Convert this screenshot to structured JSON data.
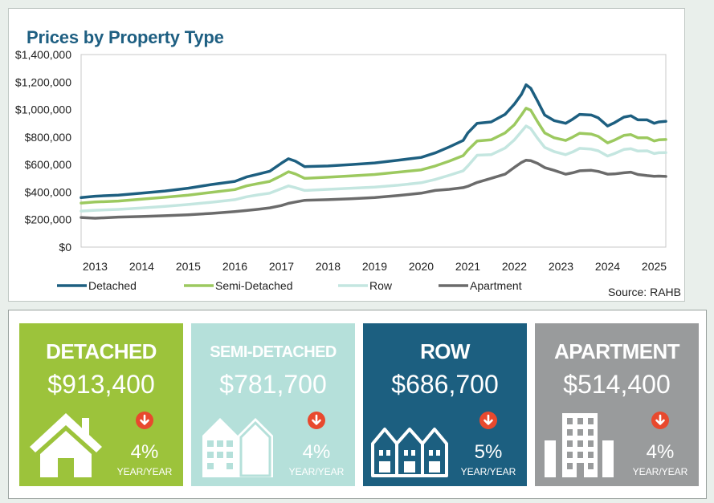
{
  "chart_data": {
    "type": "line",
    "title": "Prices by Property Type",
    "source": "Source: RAHB",
    "xlabel": "",
    "ylabel": "",
    "x_range": [
      2012.7,
      2025.25
    ],
    "ylim": [
      0,
      1400000
    ],
    "y_ticks": [
      0,
      200000,
      400000,
      600000,
      800000,
      1000000,
      1200000,
      1400000
    ],
    "y_tick_labels": [
      "$0",
      "$200,000",
      "$400,000",
      "$600,000",
      "$800,000",
      "$1,000,000",
      "$1,200,000",
      "$1,400,000"
    ],
    "x_tick_values": [
      2013,
      2014,
      2015,
      2016,
      2017,
      2018,
      2019,
      2020,
      2021,
      2022,
      2023,
      2024,
      2025
    ],
    "x_tick_labels": [
      "2013",
      "2014",
      "2015",
      "2016",
      "2017",
      "2018",
      "2019",
      "2020",
      "2021",
      "2022",
      "2023",
      "2024",
      "2025"
    ],
    "grid": false,
    "legend_position": "bottom",
    "series": [
      {
        "name": "Detached",
        "color": "#1d5f80",
        "points": [
          [
            2012.7,
            360000
          ],
          [
            2013,
            370000
          ],
          [
            2013.5,
            378000
          ],
          [
            2014,
            392000
          ],
          [
            2014.5,
            408000
          ],
          [
            2015,
            428000
          ],
          [
            2015.5,
            455000
          ],
          [
            2016,
            478000
          ],
          [
            2016.25,
            510000
          ],
          [
            2016.5,
            530000
          ],
          [
            2016.75,
            552000
          ],
          [
            2017,
            610000
          ],
          [
            2017.15,
            642000
          ],
          [
            2017.3,
            625000
          ],
          [
            2017.5,
            585000
          ],
          [
            2018,
            590000
          ],
          [
            2018.5,
            600000
          ],
          [
            2019,
            612000
          ],
          [
            2019.5,
            632000
          ],
          [
            2020,
            652000
          ],
          [
            2020.3,
            685000
          ],
          [
            2020.6,
            728000
          ],
          [
            2020.9,
            775000
          ],
          [
            2021,
            830000
          ],
          [
            2021.2,
            900000
          ],
          [
            2021.5,
            910000
          ],
          [
            2021.8,
            965000
          ],
          [
            2022,
            1040000
          ],
          [
            2022.15,
            1110000
          ],
          [
            2022.25,
            1180000
          ],
          [
            2022.35,
            1155000
          ],
          [
            2022.5,
            1060000
          ],
          [
            2022.65,
            960000
          ],
          [
            2022.85,
            920000
          ],
          [
            2023.1,
            900000
          ],
          [
            2023.25,
            930000
          ],
          [
            2023.4,
            965000
          ],
          [
            2023.65,
            960000
          ],
          [
            2023.8,
            940000
          ],
          [
            2024,
            880000
          ],
          [
            2024.15,
            905000
          ],
          [
            2024.35,
            945000
          ],
          [
            2024.5,
            955000
          ],
          [
            2024.65,
            925000
          ],
          [
            2024.85,
            925000
          ],
          [
            2025,
            900000
          ],
          [
            2025.1,
            910000
          ],
          [
            2025.25,
            914000
          ]
        ]
      },
      {
        "name": "Semi-Detached",
        "color": "#9cc95f",
        "points": [
          [
            2012.7,
            320000
          ],
          [
            2013,
            328000
          ],
          [
            2013.5,
            335000
          ],
          [
            2014,
            348000
          ],
          [
            2014.5,
            362000
          ],
          [
            2015,
            378000
          ],
          [
            2015.5,
            398000
          ],
          [
            2016,
            418000
          ],
          [
            2016.25,
            445000
          ],
          [
            2016.5,
            462000
          ],
          [
            2016.75,
            478000
          ],
          [
            2017,
            520000
          ],
          [
            2017.15,
            548000
          ],
          [
            2017.3,
            532000
          ],
          [
            2017.5,
            500000
          ],
          [
            2018,
            508000
          ],
          [
            2018.5,
            518000
          ],
          [
            2019,
            528000
          ],
          [
            2019.5,
            545000
          ],
          [
            2020,
            562000
          ],
          [
            2020.3,
            590000
          ],
          [
            2020.6,
            625000
          ],
          [
            2020.9,
            665000
          ],
          [
            2021,
            705000
          ],
          [
            2021.2,
            772000
          ],
          [
            2021.5,
            780000
          ],
          [
            2021.8,
            830000
          ],
          [
            2022,
            890000
          ],
          [
            2022.15,
            960000
          ],
          [
            2022.25,
            1010000
          ],
          [
            2022.35,
            995000
          ],
          [
            2022.5,
            910000
          ],
          [
            2022.65,
            830000
          ],
          [
            2022.85,
            795000
          ],
          [
            2023.1,
            775000
          ],
          [
            2023.25,
            800000
          ],
          [
            2023.4,
            828000
          ],
          [
            2023.65,
            822000
          ],
          [
            2023.8,
            805000
          ],
          [
            2024,
            758000
          ],
          [
            2024.15,
            778000
          ],
          [
            2024.35,
            812000
          ],
          [
            2024.5,
            818000
          ],
          [
            2024.65,
            795000
          ],
          [
            2024.85,
            795000
          ],
          [
            2025,
            772000
          ],
          [
            2025.1,
            780000
          ],
          [
            2025.25,
            782000
          ]
        ]
      },
      {
        "name": "Row",
        "color": "#c4e6e0",
        "points": [
          [
            2012.7,
            262000
          ],
          [
            2013,
            268000
          ],
          [
            2013.5,
            274000
          ],
          [
            2014,
            284000
          ],
          [
            2014.5,
            296000
          ],
          [
            2015,
            310000
          ],
          [
            2015.5,
            326000
          ],
          [
            2016,
            345000
          ],
          [
            2016.25,
            366000
          ],
          [
            2016.5,
            380000
          ],
          [
            2016.75,
            392000
          ],
          [
            2017,
            425000
          ],
          [
            2017.15,
            445000
          ],
          [
            2017.3,
            432000
          ],
          [
            2017.5,
            412000
          ],
          [
            2018,
            420000
          ],
          [
            2018.5,
            428000
          ],
          [
            2019,
            436000
          ],
          [
            2019.5,
            450000
          ],
          [
            2020,
            468000
          ],
          [
            2020.3,
            492000
          ],
          [
            2020.6,
            522000
          ],
          [
            2020.9,
            555000
          ],
          [
            2021,
            590000
          ],
          [
            2021.2,
            668000
          ],
          [
            2021.5,
            672000
          ],
          [
            2021.8,
            720000
          ],
          [
            2022,
            780000
          ],
          [
            2022.15,
            840000
          ],
          [
            2022.25,
            880000
          ],
          [
            2022.35,
            862000
          ],
          [
            2022.5,
            790000
          ],
          [
            2022.65,
            725000
          ],
          [
            2022.85,
            695000
          ],
          [
            2023.1,
            672000
          ],
          [
            2023.25,
            692000
          ],
          [
            2023.4,
            718000
          ],
          [
            2023.65,
            712000
          ],
          [
            2023.8,
            700000
          ],
          [
            2024,
            662000
          ],
          [
            2024.15,
            680000
          ],
          [
            2024.35,
            710000
          ],
          [
            2024.5,
            715000
          ],
          [
            2024.65,
            698000
          ],
          [
            2024.85,
            700000
          ],
          [
            2025,
            680000
          ],
          [
            2025.1,
            686000
          ],
          [
            2025.25,
            687000
          ]
        ]
      },
      {
        "name": "Apartment",
        "color": "#6b6b6b",
        "points": [
          [
            2012.7,
            215000
          ],
          [
            2013,
            210000
          ],
          [
            2013.5,
            218000
          ],
          [
            2014,
            222000
          ],
          [
            2014.5,
            228000
          ],
          [
            2015,
            235000
          ],
          [
            2015.5,
            245000
          ],
          [
            2016,
            258000
          ],
          [
            2016.25,
            266000
          ],
          [
            2016.5,
            275000
          ],
          [
            2016.75,
            285000
          ],
          [
            2017,
            302000
          ],
          [
            2017.15,
            318000
          ],
          [
            2017.3,
            328000
          ],
          [
            2017.5,
            340000
          ],
          [
            2018,
            345000
          ],
          [
            2018.5,
            352000
          ],
          [
            2019,
            360000
          ],
          [
            2019.5,
            375000
          ],
          [
            2020,
            392000
          ],
          [
            2020.3,
            412000
          ],
          [
            2020.6,
            420000
          ],
          [
            2020.9,
            432000
          ],
          [
            2021,
            442000
          ],
          [
            2021.2,
            470000
          ],
          [
            2021.5,
            500000
          ],
          [
            2021.8,
            530000
          ],
          [
            2022,
            580000
          ],
          [
            2022.15,
            615000
          ],
          [
            2022.25,
            632000
          ],
          [
            2022.35,
            628000
          ],
          [
            2022.5,
            608000
          ],
          [
            2022.65,
            578000
          ],
          [
            2022.85,
            558000
          ],
          [
            2023.1,
            530000
          ],
          [
            2023.25,
            540000
          ],
          [
            2023.4,
            555000
          ],
          [
            2023.65,
            558000
          ],
          [
            2023.8,
            550000
          ],
          [
            2024,
            530000
          ],
          [
            2024.15,
            532000
          ],
          [
            2024.35,
            540000
          ],
          [
            2024.5,
            545000
          ],
          [
            2024.65,
            528000
          ],
          [
            2024.85,
            520000
          ],
          [
            2025,
            515000
          ],
          [
            2025.1,
            516000
          ],
          [
            2025.25,
            514000
          ]
        ]
      }
    ]
  },
  "cards": [
    {
      "id": "detached",
      "title": "DETACHED",
      "price": "$913,400",
      "change": "4%",
      "period": "YEAR/YEAR",
      "direction": "down",
      "color": "#9cc33b",
      "icon": "house-icon"
    },
    {
      "id": "semi-detached",
      "title": "SEMI-DETACHED",
      "price": "$781,700",
      "change": "4%",
      "period": "YEAR/YEAR",
      "direction": "down",
      "color": "#b5e0da",
      "icon": "semi-detached-building-icon"
    },
    {
      "id": "row",
      "title": "ROW",
      "price": "$686,700",
      "change": "5%",
      "period": "YEAR/YEAR",
      "direction": "down",
      "color": "#1c5f80",
      "icon": "row-houses-icon"
    },
    {
      "id": "apartment",
      "title": "APARTMENT",
      "price": "$514,400",
      "change": "4%",
      "period": "YEAR/YEAR",
      "direction": "down",
      "color": "#999b9c",
      "icon": "apartment-building-icon"
    }
  ],
  "colors": {
    "down_arrow": "#e8492e",
    "title": "#1e5f82"
  }
}
